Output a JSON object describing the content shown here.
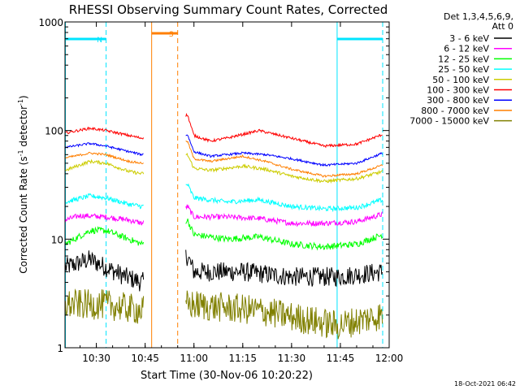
{
  "chart_data": {
    "type": "line",
    "title": "RHESSI Observing Summary Count Rates, Corrected",
    "ylabel_main": "Corrected Count Rate (s",
    "ylabel_sup1": "-1",
    "ylabel_mid": " detector",
    "ylabel_sup2": "-1",
    "ylabel_end": ")",
    "xlabel": "Start Time (30-Nov-06 10:20:22)",
    "footer": "18-Oct-2021 06:42",
    "y_scale": "log",
    "ylim": [
      1,
      1000
    ],
    "xlim": [
      "10:20:22",
      "12:00"
    ],
    "x_ticks": [
      "10:30",
      "10:45",
      "11:00",
      "11:15",
      "11:30",
      "11:45",
      "12:00"
    ],
    "y_tick_labels": [
      {
        "label": "1000",
        "value": 1000
      },
      {
        "label": "100",
        "value": 100
      },
      {
        "label": "10",
        "value": 10
      },
      {
        "label": "1",
        "value": 1
      }
    ],
    "legend_header": [
      "Det 1,3,4,5,6,9,",
      "Att 0"
    ],
    "legend_position": "right",
    "flags": [
      {
        "label": "N",
        "color": "#00e5ff",
        "segments": [
          [
            "10:20:22",
            "10:33:00"
          ],
          [
            "11:44:00",
            "11:58:00"
          ]
        ]
      },
      {
        "label": "S",
        "color": "#ff7f00",
        "segments": [
          [
            "10:47:00",
            "10:55:00"
          ]
        ]
      }
    ],
    "markers": [
      {
        "time": "10:20:30",
        "color": "#00e5ff",
        "style": "solid"
      },
      {
        "time": "10:33:00",
        "color": "#00e5ff",
        "style": "dashed"
      },
      {
        "time": "10:47:00",
        "color": "#ff7f00",
        "style": "solid"
      },
      {
        "time": "10:55:00",
        "color": "#ff7f00",
        "style": "dashed"
      },
      {
        "time": "11:44:00",
        "color": "#00e5ff",
        "style": "solid"
      },
      {
        "time": "11:58:00",
        "color": "#00e5ff",
        "style": "dashed"
      }
    ],
    "gap": [
      "10:44:30",
      "10:57:30"
    ],
    "series": [
      {
        "name": "3 - 6 keV",
        "color": "#000000",
        "noise": 0.09,
        "points": [
          [
            "10:20:30",
            5.5
          ],
          [
            "10:28:00",
            6.5
          ],
          [
            "10:33:00",
            5.5
          ],
          [
            "10:39:00",
            4.5
          ],
          [
            "10:44:00",
            4.0
          ],
          [
            "10:58:00",
            7.0
          ],
          [
            "11:00:00",
            5.0
          ],
          [
            "11:15:00",
            5.0
          ],
          [
            "11:30:00",
            4.5
          ],
          [
            "11:44:00",
            4.5
          ],
          [
            "11:58:00",
            5.0
          ]
        ]
      },
      {
        "name": "6 - 12 keV",
        "color": "#ff00ff",
        "noise": 0.025,
        "points": [
          [
            "10:20:30",
            15
          ],
          [
            "10:25:00",
            16.5
          ],
          [
            "10:33:00",
            16
          ],
          [
            "10:40:00",
            15
          ],
          [
            "10:44:00",
            14
          ],
          [
            "10:58:00",
            20
          ],
          [
            "11:00:00",
            16
          ],
          [
            "11:10:00",
            16
          ],
          [
            "11:20:00",
            15.5
          ],
          [
            "11:30:00",
            14
          ],
          [
            "11:40:00",
            14
          ],
          [
            "11:50:00",
            14.5
          ],
          [
            "11:58:00",
            17
          ]
        ]
      },
      {
        "name": "12 - 25 keV",
        "color": "#00ff00",
        "noise": 0.03,
        "points": [
          [
            "10:20:30",
            9
          ],
          [
            "10:28:00",
            12
          ],
          [
            "10:33:00",
            12
          ],
          [
            "10:40:00",
            10
          ],
          [
            "10:44:00",
            9
          ],
          [
            "10:58:00",
            15
          ],
          [
            "11:00:00",
            11
          ],
          [
            "11:10:00",
            10
          ],
          [
            "11:20:00",
            10.5
          ],
          [
            "11:30:00",
            9
          ],
          [
            "11:40:00",
            8.5
          ],
          [
            "11:50:00",
            9
          ],
          [
            "11:58:00",
            11
          ]
        ]
      },
      {
        "name": "25 - 50 keV",
        "color": "#00ffff",
        "noise": 0.022,
        "points": [
          [
            "10:20:30",
            22
          ],
          [
            "10:28:00",
            25
          ],
          [
            "10:33:00",
            24
          ],
          [
            "10:40:00",
            21
          ],
          [
            "10:44:00",
            20
          ],
          [
            "10:58:00",
            32
          ],
          [
            "11:00:00",
            24
          ],
          [
            "11:10:00",
            22
          ],
          [
            "11:20:00",
            23
          ],
          [
            "11:30:00",
            20
          ],
          [
            "11:40:00",
            19
          ],
          [
            "11:50:00",
            19.5
          ],
          [
            "11:58:00",
            23
          ]
        ]
      },
      {
        "name": "50 - 100 keV",
        "color": "#cccc00",
        "noise": 0.015,
        "points": [
          [
            "10:20:30",
            43
          ],
          [
            "10:28:00",
            52
          ],
          [
            "10:33:00",
            50
          ],
          [
            "10:40:00",
            42
          ],
          [
            "10:44:00",
            40
          ],
          [
            "10:58:00",
            60
          ],
          [
            "11:00:00",
            45
          ],
          [
            "11:05:00",
            43
          ],
          [
            "11:15:00",
            47
          ],
          [
            "11:22:00",
            44
          ],
          [
            "11:30:00",
            38
          ],
          [
            "11:40:00",
            34
          ],
          [
            "11:50:00",
            36
          ],
          [
            "11:58:00",
            42
          ]
        ]
      },
      {
        "name": "100 - 300 keV",
        "color": "#ff0000",
        "noise": 0.012,
        "points": [
          [
            "10:20:30",
            95
          ],
          [
            "10:28:00",
            105
          ],
          [
            "10:33:00",
            100
          ],
          [
            "10:40:00",
            90
          ],
          [
            "10:44:00",
            85
          ],
          [
            "10:58:00",
            140
          ],
          [
            "11:00:00",
            90
          ],
          [
            "11:05:00",
            80
          ],
          [
            "11:10:00",
            85
          ],
          [
            "11:20:00",
            100
          ],
          [
            "11:30:00",
            85
          ],
          [
            "11:40:00",
            72
          ],
          [
            "11:50:00",
            75
          ],
          [
            "11:58:00",
            92
          ]
        ]
      },
      {
        "name": "300 - 800 keV",
        "color": "#0000ff",
        "noise": 0.01,
        "points": [
          [
            "10:20:30",
            70
          ],
          [
            "10:28:00",
            76
          ],
          [
            "10:33:00",
            72
          ],
          [
            "10:40:00",
            64
          ],
          [
            "10:44:00",
            60
          ],
          [
            "10:58:00",
            92
          ],
          [
            "11:00:00",
            64
          ],
          [
            "11:05:00",
            58
          ],
          [
            "11:15:00",
            62
          ],
          [
            "11:22:00",
            60
          ],
          [
            "11:30:00",
            55
          ],
          [
            "11:40:00",
            48
          ],
          [
            "11:50:00",
            50
          ],
          [
            "11:58:00",
            62
          ]
        ]
      },
      {
        "name": "800 - 7000 keV",
        "color": "#ff7f00",
        "noise": 0.01,
        "points": [
          [
            "10:20:30",
            56
          ],
          [
            "10:28:00",
            62
          ],
          [
            "10:33:00",
            60
          ],
          [
            "10:40:00",
            52
          ],
          [
            "10:44:00",
            50
          ],
          [
            "10:58:00",
            80
          ],
          [
            "11:00:00",
            55
          ],
          [
            "11:05:00",
            52
          ],
          [
            "11:15:00",
            58
          ],
          [
            "11:22:00",
            52
          ],
          [
            "11:30:00",
            44
          ],
          [
            "11:40:00",
            38
          ],
          [
            "11:50:00",
            40
          ],
          [
            "11:58:00",
            48
          ]
        ]
      },
      {
        "name": "7000 - 15000 keV",
        "color": "#808000",
        "noise": 0.14,
        "points": [
          [
            "10:20:30",
            2.5
          ],
          [
            "10:33:00",
            2.5
          ],
          [
            "10:44:00",
            2.2
          ],
          [
            "10:58:00",
            2.5
          ],
          [
            "11:20:00",
            2.2
          ],
          [
            "11:35:00",
            1.8
          ],
          [
            "11:44:00",
            1.6
          ],
          [
            "11:58:00",
            2.0
          ]
        ]
      }
    ]
  }
}
